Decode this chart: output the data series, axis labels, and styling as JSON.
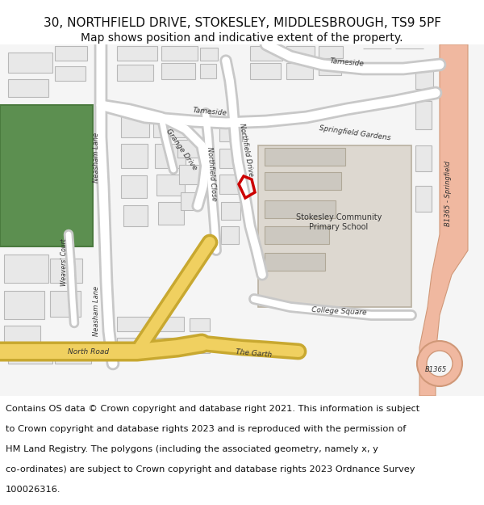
{
  "title_line1": "30, NORTHFIELD DRIVE, STOKESLEY, MIDDLESBROUGH, TS9 5PF",
  "title_line2": "Map shows position and indicative extent of the property.",
  "footer_text": "Contains OS data © Crown copyright and database right 2021. This information is subject to Crown copyright and database rights 2023 and is reproduced with the permission of HM Land Registry. The polygons (including the associated geometry, namely x, y co-ordinates) are subject to Crown copyright and database rights 2023 Ordnance Survey 100026316.",
  "map_bg": "#f5f5f5",
  "fig_bg": "#ffffff",
  "road_color": "#ffffff",
  "road_edge": "#c8c8c8",
  "building_fill": "#e8e8e8",
  "building_edge": "#b8b8b8",
  "green_fill": "#5c8f50",
  "green_edge": "#4a7a3e",
  "pink_road": "#f0b8a0",
  "pink_edge": "#d09878",
  "yellow_road": "#f0d060",
  "yellow_edge": "#c8a830",
  "red_polygon": "#cc0000",
  "school_fill": "#ddd8d0",
  "school_edge": "#b8b0a0",
  "label_color": "#333333",
  "title_fontsize": 11,
  "subtitle_fontsize": 10,
  "footer_fontsize": 8.2
}
